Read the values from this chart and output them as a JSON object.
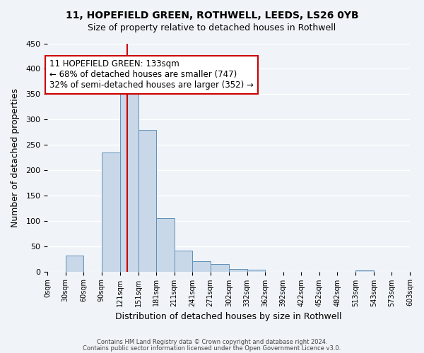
{
  "title": "11, HOPEFIELD GREEN, ROTHWELL, LEEDS, LS26 0YB",
  "subtitle": "Size of property relative to detached houses in Rothwell",
  "xlabel": "Distribution of detached houses by size in Rothwell",
  "ylabel": "Number of detached properties",
  "bar_color": "#c8d8e8",
  "bar_edge_color": "#6090b8",
  "background_color": "#f0f4f8",
  "grid_color": "#ffffff",
  "bin_edges": [
    0,
    30,
    60,
    90,
    121,
    151,
    181,
    211,
    241,
    271,
    302,
    332,
    362,
    392,
    422,
    452,
    482,
    513,
    543,
    573,
    603
  ],
  "bin_labels": [
    "0sqm",
    "30sqm",
    "60sqm",
    "90sqm",
    "121sqm",
    "151sqm",
    "181sqm",
    "211sqm",
    "241sqm",
    "271sqm",
    "302sqm",
    "332sqm",
    "362sqm",
    "392sqm",
    "422sqm",
    "452sqm",
    "482sqm",
    "513sqm",
    "543sqm",
    "573sqm",
    "603sqm"
  ],
  "counts": [
    0,
    32,
    0,
    235,
    362,
    280,
    105,
    41,
    20,
    15,
    5,
    3,
    0,
    0,
    0,
    0,
    0,
    2,
    0,
    0
  ],
  "vline_x": 133,
  "annotation_title": "11 HOPEFIELD GREEN: 133sqm",
  "annotation_line1": "← 68% of detached houses are smaller (747)",
  "annotation_line2": "32% of semi-detached houses are larger (352) →",
  "annotation_box_color": "#ffffff",
  "annotation_box_edge_color": "#cc0000",
  "vline_color": "#cc0000",
  "ylim": [
    0,
    450
  ],
  "yticks": [
    0,
    50,
    100,
    150,
    200,
    250,
    300,
    350,
    400,
    450
  ],
  "footer1": "Contains HM Land Registry data © Crown copyright and database right 2024.",
  "footer2": "Contains public sector information licensed under the Open Government Licence v3.0."
}
